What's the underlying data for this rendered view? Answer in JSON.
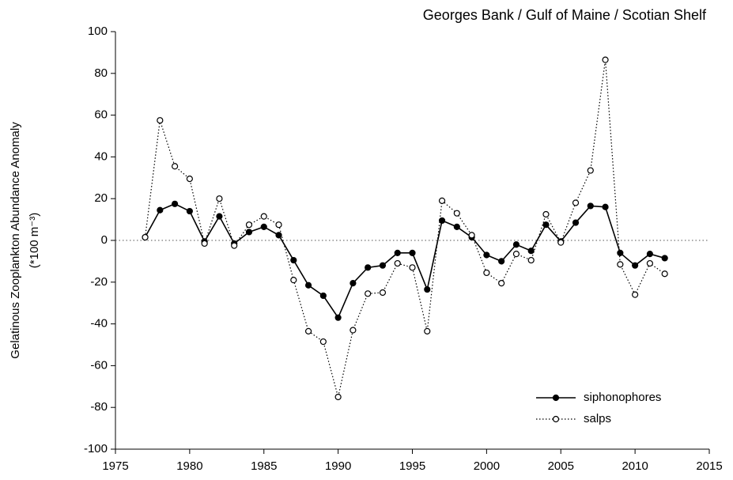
{
  "chart_data": {
    "type": "line",
    "title": "Georges Bank / Gulf of Maine / Scotian Shelf",
    "y_label": "Gelatinous Zooplankton Abundance Anomaly",
    "y_label_unit": "(*100 m⁻³)",
    "x": [
      1977,
      1978,
      1979,
      1980,
      1981,
      1982,
      1983,
      1984,
      1985,
      1986,
      1987,
      1988,
      1989,
      1990,
      1991,
      1992,
      1993,
      1994,
      1995,
      1996,
      1997,
      1998,
      1999,
      2000,
      2001,
      2002,
      2003,
      2004,
      2005,
      2006,
      2007,
      2008,
      2009,
      2010,
      2011,
      2012
    ],
    "series": [
      {
        "name": "siphonophores",
        "color": "#000000",
        "line_style": "solid",
        "marker": "filled",
        "values": [
          1.5,
          14.5,
          17.5,
          14,
          -0.5,
          11.5,
          -1.5,
          4,
          6.5,
          2.5,
          -9.5,
          -21.5,
          -26.5,
          -37,
          -20.5,
          -13,
          -12,
          -6,
          -6,
          -23.5,
          9.5,
          6.5,
          1.5,
          -7,
          -10,
          -2,
          -5,
          7.5,
          -0.5,
          8.5,
          16.5,
          16,
          -6,
          -12,
          -6.5,
          -8.5
        ]
      },
      {
        "name": "salps",
        "color": "#000000",
        "line_style": "dotted",
        "marker": "open",
        "values": [
          1.5,
          57.5,
          35.5,
          29.5,
          -1.5,
          20,
          -2.5,
          7.5,
          11.5,
          7.5,
          -19,
          -43.5,
          -48.5,
          -75,
          -43,
          -25.5,
          -25,
          -11,
          -13,
          -43.5,
          19,
          13,
          2.5,
          -15.5,
          -20.5,
          -6.5,
          -9.5,
          12.5,
          -1,
          18,
          33.5,
          86.5,
          -11.5,
          -26,
          -11,
          -16
        ]
      }
    ],
    "xlim": [
      1975,
      2015
    ],
    "xticks": [
      1975,
      1980,
      1985,
      1990,
      1995,
      2000,
      2005,
      2010,
      2015
    ],
    "ylim": [
      -100,
      100
    ],
    "yticks": [
      -100,
      -80,
      -60,
      -40,
      -20,
      0,
      20,
      40,
      60,
      80,
      100
    ],
    "zero_line": true,
    "legend": "lower right"
  }
}
